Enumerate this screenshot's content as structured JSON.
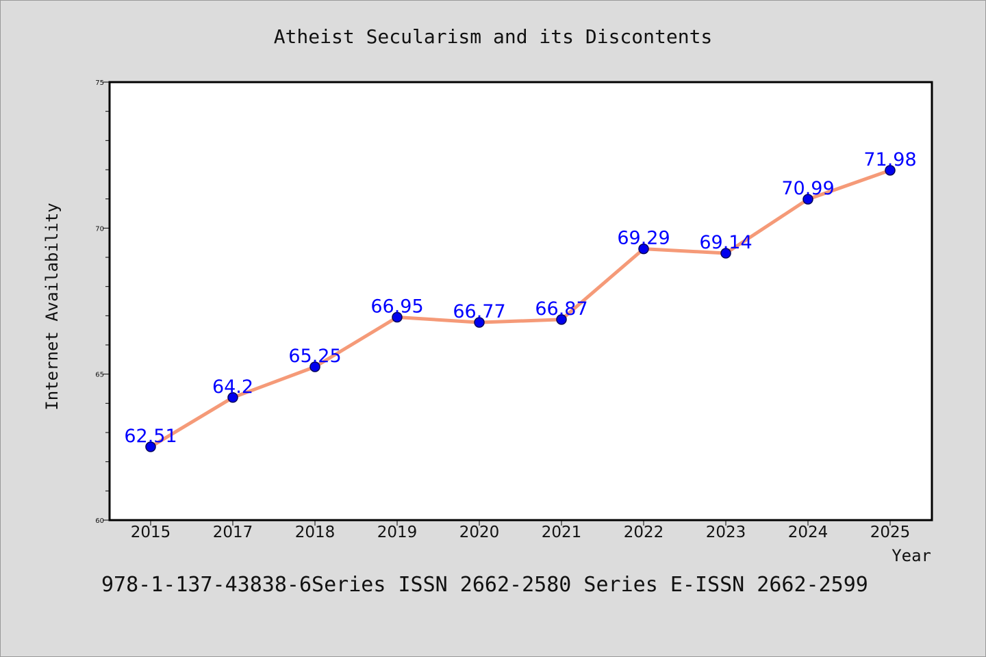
{
  "chart_data": {
    "type": "line",
    "title": "Atheist Secularism and its Discontents",
    "xlabel": "Year",
    "ylabel": "Internet Availability",
    "footer": "978-1-137-43838-6Series ISSN 2662-2580 Series E-ISSN 2662-2599",
    "categories": [
      "2015",
      "2017",
      "2018",
      "2019",
      "2020",
      "2021",
      "2022",
      "2023",
      "2024",
      "2025"
    ],
    "values": [
      62.51,
      64.2,
      65.25,
      66.95,
      66.77,
      66.87,
      69.29,
      69.14,
      70.99,
      71.98
    ],
    "data_labels": [
      "62.51",
      "64.2",
      "65.25",
      "66.95",
      "66.77",
      "66.87",
      "69.29",
      "69.14",
      "70.99",
      "71.98"
    ],
    "ylim": [
      60,
      75
    ],
    "y_major_ticks": [
      "60",
      "65",
      "70",
      "75"
    ],
    "grid": false,
    "legend": "none",
    "colors": {
      "line": "#f59a78",
      "marker": "#0000ee",
      "label": "#0000ff",
      "background": "#dcdcdc",
      "plot_area": "#ffffff"
    }
  }
}
